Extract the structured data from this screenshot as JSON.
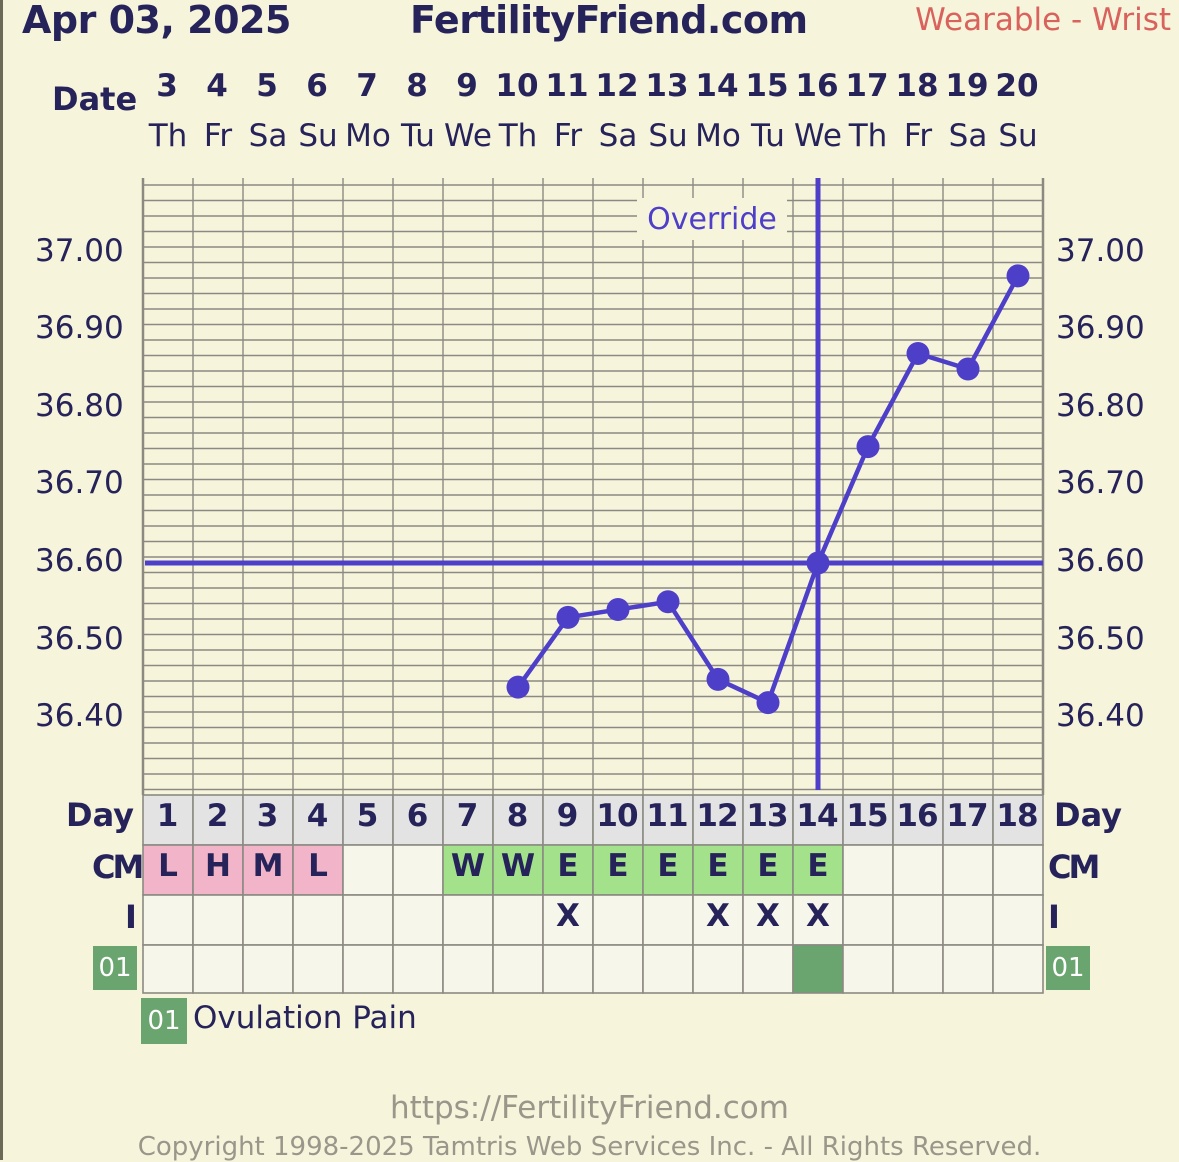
{
  "header": {
    "date": "Apr 03, 2025",
    "site": "FertilityFriend.com",
    "device": "Wearable - Wrist"
  },
  "labels": {
    "date": "Date",
    "day": "Day",
    "cm": "CM",
    "intercourse": "I",
    "override": "Override"
  },
  "colors": {
    "line": "#4e3fc9",
    "grid": "#8b8a82",
    "cm_pink": "#f1b4c8",
    "cm_green": "#a3e28b",
    "legend_green": "#6aa56f",
    "cell_bg": "#f7f6ea",
    "day_bg": "#e3e3e3"
  },
  "chart_data": {
    "type": "line",
    "dates": [
      "3",
      "4",
      "5",
      "6",
      "7",
      "8",
      "9",
      "10",
      "11",
      "12",
      "13",
      "14",
      "15",
      "16",
      "17",
      "18",
      "19",
      "20"
    ],
    "weekdays": [
      "Th",
      "Fr",
      "Sa",
      "Su",
      "Mo",
      "Tu",
      "We",
      "Th",
      "Fr",
      "Sa",
      "Su",
      "Mo",
      "Tu",
      "We",
      "Th",
      "Fr",
      "Sa",
      "Su"
    ],
    "cycle_days": [
      "1",
      "2",
      "3",
      "4",
      "5",
      "6",
      "7",
      "8",
      "9",
      "10",
      "11",
      "12",
      "13",
      "14",
      "15",
      "16",
      "17",
      "18"
    ],
    "series": [
      {
        "values": [
          null,
          null,
          null,
          null,
          null,
          null,
          null,
          36.44,
          36.53,
          36.54,
          36.55,
          36.45,
          36.42,
          36.6,
          36.75,
          36.87,
          36.85,
          36.97
        ]
      }
    ],
    "yticks": [
      "37.00",
      "36.90",
      "36.80",
      "36.70",
      "36.60",
      "36.50",
      "36.40"
    ],
    "ylim": [
      36.32,
      37.09
    ],
    "coverline": 36.6,
    "ovulation_day_index": 13,
    "cm": [
      "L",
      "H",
      "M",
      "L",
      "",
      "",
      "W",
      "W",
      "E",
      "E",
      "E",
      "E",
      "E",
      "E",
      "",
      "",
      "",
      ""
    ],
    "cm_colors": [
      "pink",
      "pink",
      "pink",
      "pink",
      "",
      "",
      "green",
      "green",
      "green",
      "green",
      "green",
      "green",
      "green",
      "green",
      "",
      "",
      "",
      ""
    ],
    "intercourse": [
      "",
      "",
      "",
      "",
      "",
      "",
      "",
      "",
      "X",
      "",
      "",
      "X",
      "X",
      "X",
      "",
      "",
      "",
      ""
    ],
    "custom_code": "01",
    "custom_marks": [
      false,
      false,
      false,
      false,
      false,
      false,
      false,
      false,
      false,
      false,
      false,
      false,
      false,
      true,
      false,
      false,
      false,
      false
    ]
  },
  "legend": {
    "code": "01",
    "text": "Ovulation Pain"
  },
  "footer": {
    "url": "https://FertilityFriend.com",
    "copyright": "Copyright 1998-2025 Tamtris Web Services Inc. - All Rights Reserved."
  }
}
